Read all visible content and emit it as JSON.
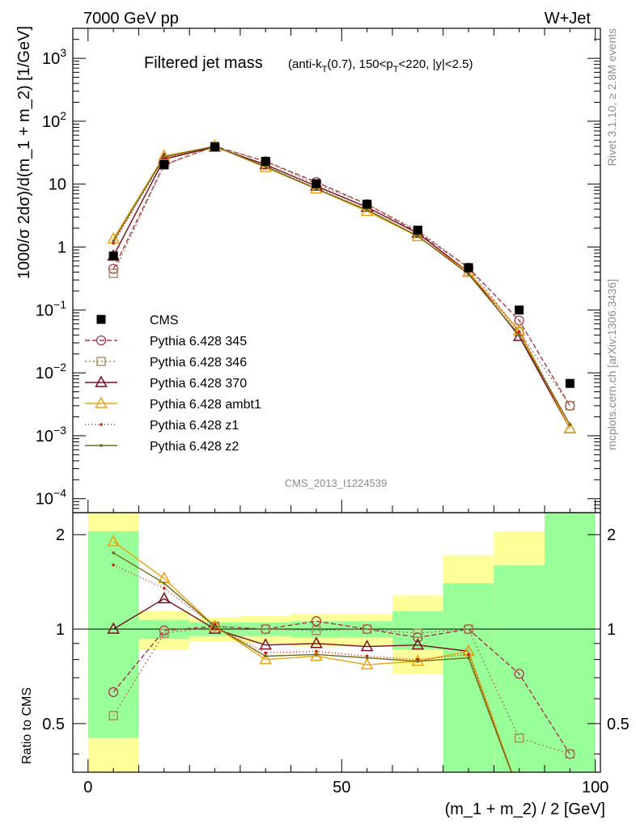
{
  "header": {
    "left_label": "7000 GeV pp",
    "right_label": "W+Jet"
  },
  "side_labels": {
    "rivet": "Rivet 3.1.10, ≥ 2.8M events",
    "mcplots": "mcplots.cern.ch [arXiv:1306.3436]"
  },
  "watermark": "CMS_2013_I1224539",
  "chart_data": {
    "type": "line",
    "title": "Filtered jet mass",
    "title_detail": {
      "prefix": "(anti-k",
      "sub1": "T",
      "mid": "(0.7), 150<p",
      "sub2": "T",
      "suffix": "<220, |y|<2.5)"
    },
    "xlabel": "(m_1 + m_2) / 2 [GeV]",
    "ylabel": "1000/σ 2dσ)/d(m_1 + m_2) [1/GeV]",
    "ratio_ylabel": "Ratio to CMS",
    "xlim": [
      -3,
      101
    ],
    "ylim": [
      6e-05,
      3000
    ],
    "yscale": "log",
    "ratio_ylim": [
      0.35,
      2.35
    ],
    "ratio_yscale": "log",
    "grid": false,
    "legend_position": "middle-left",
    "x_ticks": [
      0,
      50,
      100
    ],
    "y_ticks": [
      {
        "value": 0.0001,
        "label": "10",
        "exp": "−4"
      },
      {
        "value": 0.001,
        "label": "10",
        "exp": "−3"
      },
      {
        "value": 0.01,
        "label": "10",
        "exp": "−2"
      },
      {
        "value": 0.1,
        "label": "10",
        "exp": "−1"
      },
      {
        "value": 1,
        "label": "1",
        "exp": ""
      },
      {
        "value": 10,
        "label": "10",
        "exp": ""
      },
      {
        "value": 100,
        "label": "10",
        "exp": "2"
      },
      {
        "value": 1000,
        "label": "10",
        "exp": "3"
      }
    ],
    "ratio_ticks": [
      {
        "value": 0.5,
        "label": "0.5"
      },
      {
        "value": 1,
        "label": "1"
      },
      {
        "value": 2,
        "label": "2"
      }
    ],
    "bins": [
      [
        0,
        10
      ],
      [
        10,
        20
      ],
      [
        20,
        30
      ],
      [
        30,
        40
      ],
      [
        40,
        50
      ],
      [
        50,
        60
      ],
      [
        60,
        70
      ],
      [
        70,
        80
      ],
      [
        80,
        90
      ],
      [
        90,
        100
      ]
    ],
    "x": [
      5,
      15,
      25,
      35,
      45,
      55,
      65,
      75,
      85,
      95
    ],
    "cms": {
      "name": "CMS",
      "values": [
        0.72,
        20.5,
        39,
        23,
        10.2,
        4.8,
        1.85,
        0.47,
        0.1,
        0.0068
      ],
      "band_green": [
        [
          0.45,
          2.05
        ],
        [
          0.93,
          1.07
        ],
        [
          0.95,
          1.05
        ],
        [
          0.95,
          1.05
        ],
        [
          0.94,
          1.06
        ],
        [
          0.94,
          1.06
        ],
        [
          0.86,
          1.14
        ],
        [
          0.35,
          1.4
        ],
        [
          0.35,
          1.6
        ],
        [
          0.35,
          2.35
        ]
      ],
      "band_yellow": [
        [
          0.35,
          2.35
        ],
        [
          0.86,
          1.14
        ],
        [
          0.91,
          1.09
        ],
        [
          0.9,
          1.1
        ],
        [
          0.88,
          1.12
        ],
        [
          0.88,
          1.12
        ],
        [
          0.72,
          1.28
        ],
        [
          0.35,
          1.72
        ],
        [
          0.35,
          2.05
        ],
        [
          0.35,
          2.35
        ]
      ]
    },
    "series": [
      {
        "name": "Pythia 6.428 345",
        "color": "#a8354f",
        "dash": "6,3",
        "marker": "circle",
        "values": [
          0.45,
          20.4,
          40,
          23,
          10.8,
          4.8,
          1.72,
          0.47,
          0.068,
          0.003
        ],
        "ratio": [
          0.63,
          0.99,
          1.02,
          1.0,
          1.06,
          1.0,
          0.94,
          1.0,
          0.72,
          0.4
        ]
      },
      {
        "name": "Pythia 6.428 346",
        "color": "#a8804f",
        "dash": "2,3",
        "marker": "square",
        "values": [
          0.38,
          20,
          40,
          23,
          10,
          4.8,
          1.85,
          0.47,
          0.045,
          0.003
        ],
        "ratio": [
          0.53,
          0.97,
          1.02,
          1.0,
          0.99,
          1.0,
          0.97,
          1.0,
          0.45,
          0.4
        ]
      },
      {
        "name": "Pythia 6.428 370",
        "color": "#7a0b1f",
        "dash": "",
        "marker": "triangle",
        "values": [
          0.72,
          25,
          39,
          20.4,
          9.3,
          4.3,
          1.66,
          0.4,
          0.038,
          0.0013
        ],
        "ratio": [
          1.0,
          1.25,
          1.0,
          0.89,
          0.9,
          0.88,
          0.89,
          0.85,
          0.3,
          0.2
        ]
      },
      {
        "name": "Pythia 6.428 ambt1",
        "color": "#e8a412",
        "dash": "",
        "marker": "triangle",
        "values": [
          1.35,
          28,
          40,
          18.5,
          8.4,
          3.7,
          1.47,
          0.4,
          0.047,
          0.0013
        ],
        "ratio": [
          1.9,
          1.45,
          1.02,
          0.8,
          0.82,
          0.77,
          0.79,
          0.85,
          0.3,
          0.2
        ]
      },
      {
        "name": "Pythia 6.428 z1",
        "color": "#d21a0f",
        "dash": "1,3",
        "marker": "dot",
        "values": [
          1.15,
          26,
          40,
          19.3,
          8.7,
          3.95,
          1.5,
          0.39,
          0.045,
          0.0015
        ],
        "ratio": [
          1.6,
          1.35,
          1.02,
          0.84,
          0.85,
          0.82,
          0.8,
          0.83,
          0.3,
          0.2
        ]
      },
      {
        "name": "Pythia 6.428 z2",
        "color": "#6f6a16",
        "dash": "",
        "marker": "dot",
        "values": [
          1.25,
          27,
          40,
          19,
          8.4,
          3.9,
          1.5,
          0.37,
          0.04,
          0.0015
        ],
        "ratio": [
          1.75,
          1.4,
          1.02,
          0.82,
          0.83,
          0.81,
          0.79,
          0.81,
          0.3,
          0.2
        ]
      }
    ]
  }
}
